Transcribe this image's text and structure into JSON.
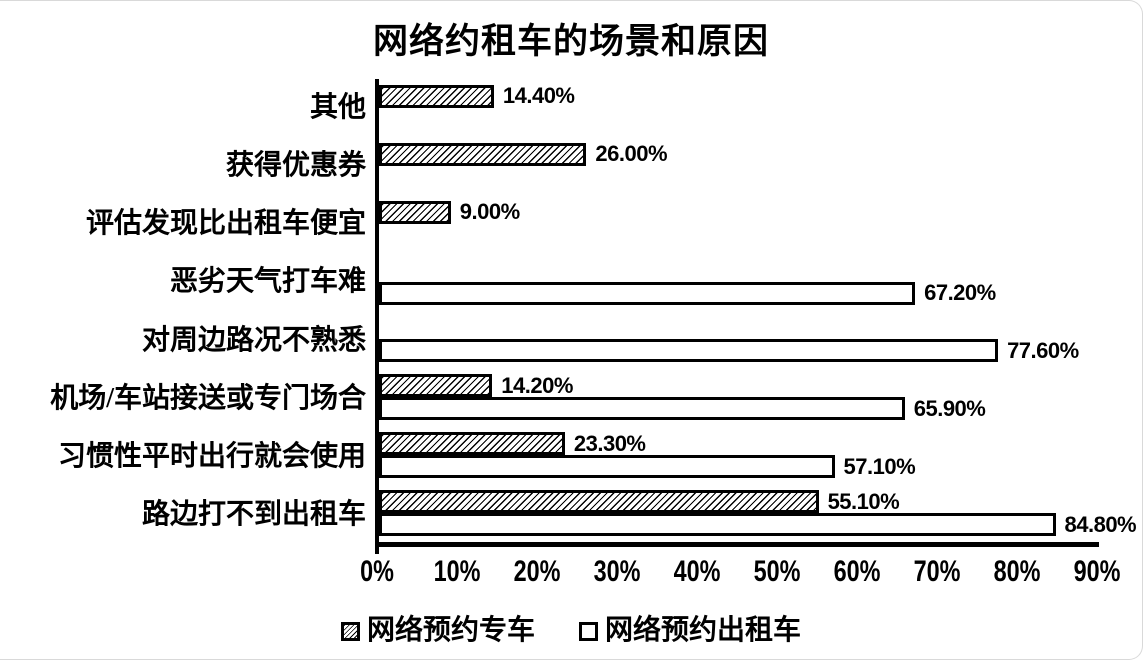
{
  "chart_data": {
    "type": "bar",
    "orientation": "horizontal",
    "title": "网络约租车的场景和原因",
    "categories": [
      "其他",
      "获得优惠券",
      "评估发现比出租车便宜",
      "恶劣天气打车难",
      "对周边路况不熟悉",
      "机场/车站接送或专门场合",
      "习惯性平时出行就会使用",
      "路边打不到出租车"
    ],
    "series": [
      {
        "key": "premium-car",
        "name": "网络预约专车",
        "style": "hatched",
        "values": [
          14.4,
          26.0,
          9.0,
          null,
          null,
          14.2,
          23.3,
          55.1
        ],
        "labels": [
          "14.40%",
          "26.00%",
          "9.00%",
          null,
          null,
          "14.20%",
          "23.30%",
          "55.10%"
        ]
      },
      {
        "key": "online-taxi",
        "name": "网络预约出租车",
        "style": "plain",
        "values": [
          null,
          null,
          null,
          67.2,
          77.6,
          65.9,
          57.1,
          84.8
        ],
        "labels": [
          null,
          null,
          null,
          "67.20%",
          "77.60%",
          "65.90%",
          "57.10%",
          "84.80%"
        ]
      }
    ],
    "x_ticks": [
      "0%",
      "10%",
      "20%",
      "30%",
      "40%",
      "50%",
      "60%",
      "70%",
      "80%",
      "90%"
    ],
    "xlim": [
      0,
      90
    ],
    "legend_position": "bottom",
    "grid": false,
    "colors": {
      "bar_fill": "#ffffff",
      "bar_border": "#000000",
      "hatch": "#000000",
      "text": "#000000",
      "frame_border": "#d9d9d9"
    }
  }
}
